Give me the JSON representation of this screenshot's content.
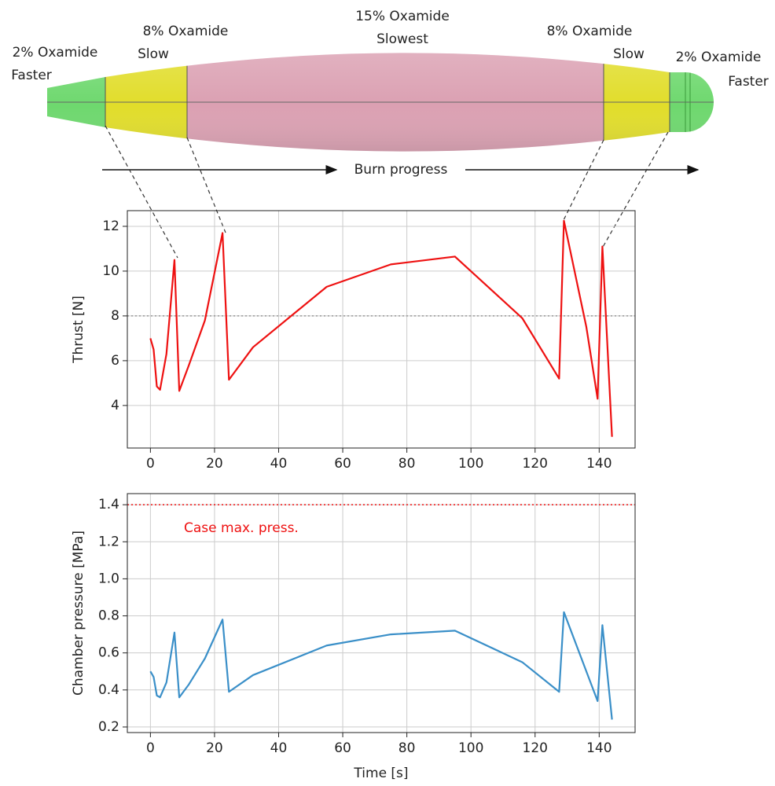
{
  "diagram": {
    "labels": [
      [
        "2% Oxamide",
        "Faster"
      ],
      [
        "8% Oxamide",
        "Slow"
      ],
      [
        "15% Oxamide",
        "Slowest"
      ],
      [
        "8% Oxamide",
        "Slow"
      ],
      [
        "2% Oxamide",
        "Faster"
      ]
    ],
    "arrow_label": "Burn progress"
  },
  "chart_data": [
    {
      "type": "line",
      "ylabel": "Thrust [N]",
      "x": [
        0,
        1,
        2,
        3,
        5,
        7.5,
        9,
        12,
        17,
        22.5,
        24.5,
        32,
        55,
        75,
        95,
        116,
        127.5,
        129,
        136,
        139.5,
        141,
        144
      ],
      "series": [
        {
          "color": "#ee1111",
          "values": [
            7.0,
            6.5,
            4.85,
            4.7,
            6.3,
            10.5,
            4.65,
            5.8,
            7.8,
            11.7,
            5.15,
            6.6,
            9.3,
            10.3,
            10.65,
            7.9,
            5.2,
            12.25,
            7.5,
            4.3,
            11.1,
            2.6
          ]
        }
      ],
      "xlim": [
        -7.2,
        151.2
      ],
      "xticks": [
        0,
        20,
        40,
        60,
        80,
        100,
        120,
        140
      ],
      "ylim": [
        2.1,
        12.7
      ],
      "yticks": [
        4,
        6,
        8,
        10,
        12
      ],
      "grid": true,
      "reference_line": {
        "value": 8,
        "color": "#999999"
      }
    },
    {
      "type": "line",
      "ylabel": "Chamber pressure [MPa]",
      "xlabel": "Time [s]",
      "x": [
        0,
        1,
        2,
        3,
        5,
        7.5,
        9,
        12,
        17,
        22.5,
        24.5,
        32,
        55,
        75,
        95,
        116,
        127.5,
        129,
        136,
        139.5,
        141,
        144
      ],
      "series": [
        {
          "color": "#3a8fc8",
          "values": [
            0.5,
            0.47,
            0.37,
            0.36,
            0.44,
            0.71,
            0.36,
            0.43,
            0.57,
            0.78,
            0.39,
            0.48,
            0.64,
            0.7,
            0.72,
            0.55,
            0.39,
            0.82,
            0.5,
            0.34,
            0.75,
            0.24
          ]
        }
      ],
      "xlim": [
        -7.2,
        151.2
      ],
      "xticks": [
        0,
        20,
        40,
        60,
        80,
        100,
        120,
        140
      ],
      "ylim": [
        0.17,
        1.46
      ],
      "yticks": [
        0.2,
        0.4,
        0.6,
        0.8,
        {
          "value": 1,
          "label": "1.0"
        },
        1.2,
        1.4
      ],
      "grid": true,
      "reference_line": {
        "value": 1.4,
        "color": "#ee1111",
        "label": "Case max. press."
      }
    }
  ]
}
